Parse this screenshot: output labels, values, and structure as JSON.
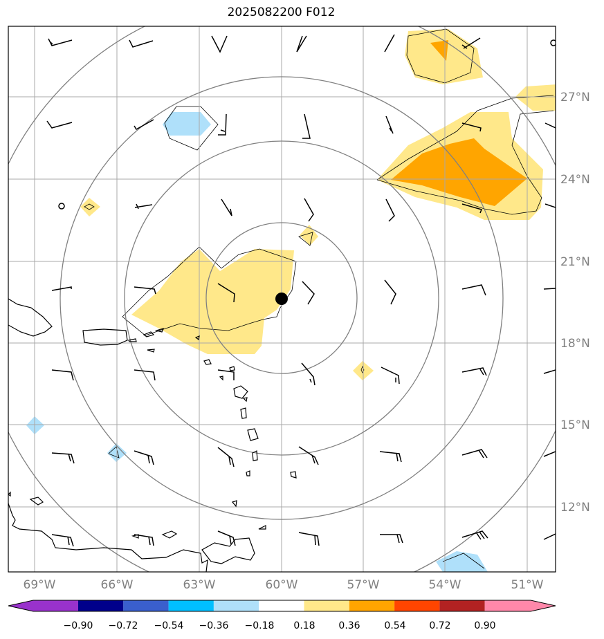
{
  "title": "2025082200 F012",
  "map": {
    "lon_ticks": [
      "69°W",
      "66°W",
      "63°W",
      "60°W",
      "57°W",
      "54°W",
      "51°W"
    ],
    "lat_ticks": [
      "27°N",
      "24°N",
      "21°N",
      "18°N",
      "15°N",
      "12°N"
    ],
    "center_marker": "storm-center"
  },
  "colorbar": {
    "ticks": [
      "−0.90",
      "−0.72",
      "−0.54",
      "−0.36",
      "−0.18",
      "0.18",
      "0.36",
      "0.54",
      "0.72",
      "0.90"
    ],
    "colors": [
      "#9932cc",
      "#00008b",
      "#3a5fcd",
      "#00bfff",
      "#afe0fa",
      "#ffffff",
      "#ffe88a",
      "#ffa500",
      "#ff4500",
      "#b22222",
      "#ff88aa"
    ]
  },
  "fill_colors": {
    "light_blue": "#afe0fa",
    "light_yellow": "#ffe88a",
    "orange": "#ffa500"
  }
}
